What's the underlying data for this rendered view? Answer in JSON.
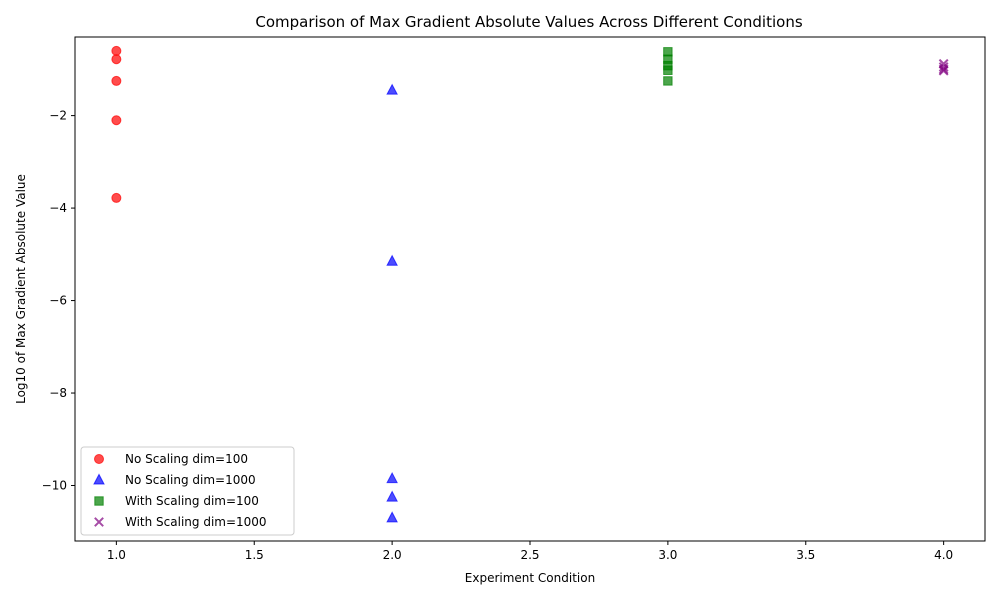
{
  "chart_data": {
    "type": "scatter",
    "title": "Comparison of Max Gradient Absolute Values Across Different Conditions",
    "xlabel": "Experiment Condition",
    "ylabel": "Log10 of Max Gradient Absolute Value",
    "xlim": [
      0.85,
      4.15
    ],
    "ylim": [
      -11.2,
      -0.3
    ],
    "x_ticks": [
      1.0,
      1.5,
      2.0,
      2.5,
      3.0,
      3.5,
      4.0
    ],
    "x_tick_labels": [
      "1.0",
      "1.5",
      "2.0",
      "2.5",
      "3.0",
      "3.5",
      "4.0"
    ],
    "y_ticks": [
      -10,
      -8,
      -6,
      -4,
      -2
    ],
    "y_tick_labels": [
      "−10",
      "−8",
      "−6",
      "−4",
      "−2"
    ],
    "grid": false,
    "legend_position": "lower-left",
    "series": [
      {
        "name": "No Scaling dim=100",
        "marker": "circle",
        "color": "#ff0000",
        "points": [
          {
            "x": 1.0,
            "y": -0.6
          },
          {
            "x": 1.0,
            "y": -0.78
          },
          {
            "x": 1.0,
            "y": -1.25
          },
          {
            "x": 1.0,
            "y": -2.1
          },
          {
            "x": 1.0,
            "y": -3.78
          }
        ]
      },
      {
        "name": "No Scaling dim=1000",
        "marker": "triangle",
        "color": "#0000ff",
        "points": [
          {
            "x": 2.0,
            "y": -1.45
          },
          {
            "x": 2.0,
            "y": -5.15
          },
          {
            "x": 2.0,
            "y": -9.85
          },
          {
            "x": 2.0,
            "y": -10.25
          },
          {
            "x": 2.0,
            "y": -10.7
          }
        ]
      },
      {
        "name": "With Scaling dim=100",
        "marker": "square",
        "color": "#008000",
        "points": [
          {
            "x": 3.0,
            "y": -0.62
          },
          {
            "x": 3.0,
            "y": -0.78
          },
          {
            "x": 3.0,
            "y": -0.92
          },
          {
            "x": 3.0,
            "y": -1.02
          },
          {
            "x": 3.0,
            "y": -1.25
          }
        ]
      },
      {
        "name": "With Scaling dim=1000",
        "marker": "x",
        "color": "#800080",
        "points": [
          {
            "x": 4.0,
            "y": -0.88
          },
          {
            "x": 4.0,
            "y": -0.95
          },
          {
            "x": 4.0,
            "y": -1.0
          },
          {
            "x": 4.0,
            "y": -1.03
          }
        ]
      }
    ]
  }
}
